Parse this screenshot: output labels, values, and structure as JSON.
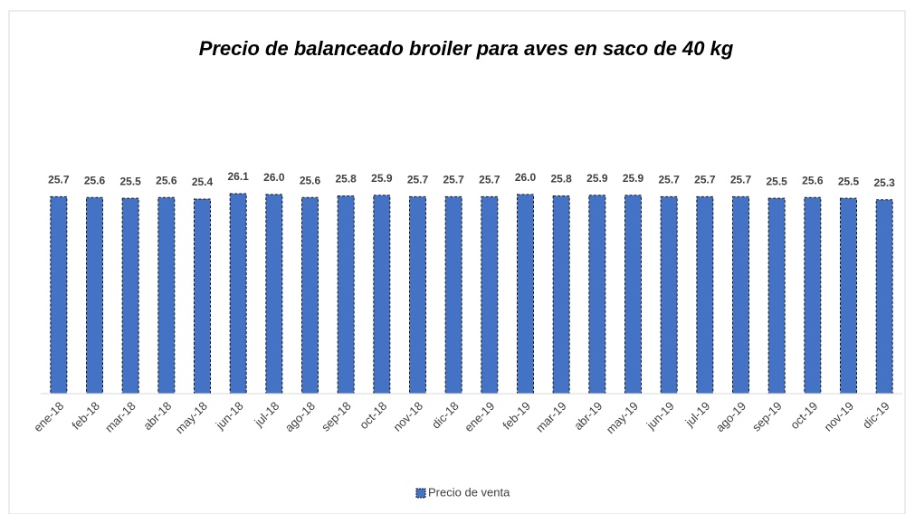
{
  "chart_data": {
    "type": "bar",
    "title": "Precio de balanceado broiler para aves en saco de 40 kg",
    "categories": [
      "ene-18",
      "feb-18",
      "mar-18",
      "abr-18",
      "may-18",
      "jun-18",
      "jul-18",
      "ago-18",
      "sep-18",
      "oct-18",
      "nov-18",
      "dic-18",
      "ene-19",
      "feb-19",
      "mar-19",
      "abr-19",
      "may-19",
      "jun-19",
      "jul-19",
      "ago-19",
      "sep-19",
      "oct-19",
      "nov-19",
      "dic-19"
    ],
    "series": [
      {
        "name": "Precio de venta",
        "color": "#4472c4",
        "values": [
          25.7,
          25.6,
          25.5,
          25.6,
          25.4,
          26.1,
          26,
          25.6,
          25.8,
          25.9,
          25.7,
          25.7,
          25.7,
          26,
          25.8,
          25.9,
          25.9,
          25.7,
          25.7,
          25.7,
          25.5,
          25.6,
          25.5,
          25.3
        ],
        "value_labels": [
          "25.7",
          "25.6",
          "25.5",
          "25.6",
          "25.4",
          "26.1",
          "26.0",
          "25.6",
          "25.8",
          "25.9",
          "25.7",
          "25.7",
          "25.7",
          "26.0",
          "25.8",
          "25.9",
          "25.9",
          "25.7",
          "25.7",
          "25.7",
          "25.5",
          "25.6",
          "25.5",
          "25.3"
        ]
      }
    ],
    "ylim": [
      0,
      30
    ],
    "legend": "bottom"
  }
}
